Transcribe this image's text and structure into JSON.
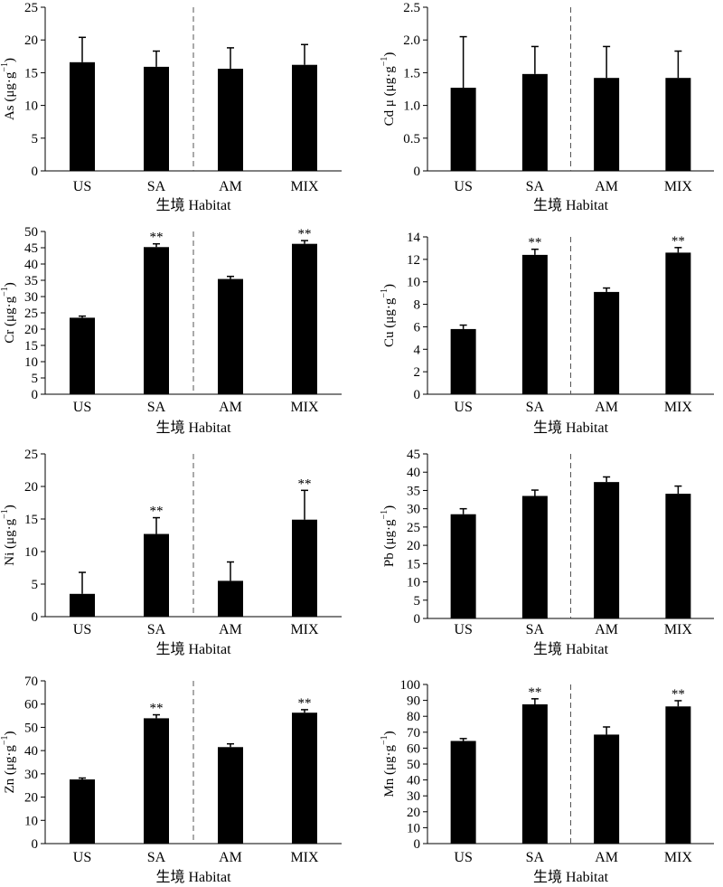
{
  "figure": {
    "xlabel": "生境 Habitat"
  },
  "chart_data": [
    {
      "type": "bar",
      "ylabel": "As (μg·g⁻¹)",
      "ylabel_parts": [
        "As",
        "(μg·g",
        "−1",
        ")"
      ],
      "categories": [
        "US",
        "SA",
        "AM",
        "MIX"
      ],
      "values": [
        16.6,
        15.9,
        15.6,
        16.2
      ],
      "errors": [
        3.8,
        2.4,
        3.2,
        3.1
      ],
      "sig": [
        "",
        "",
        "",
        ""
      ],
      "ylim": [
        0,
        25
      ],
      "yticks": [
        0,
        5,
        10,
        15,
        20,
        25
      ],
      "ytick_labels": [
        "0",
        "5",
        "10",
        "15",
        "20",
        "25"
      ],
      "xlabel": "生境 Habitat",
      "divider_between": [
        "SA",
        "AM"
      ]
    },
    {
      "type": "bar",
      "ylabel": "Cd μ(μg·g⁻¹)",
      "ylabel_parts": [
        "Cd μ",
        "(μg·g",
        "−1",
        ")"
      ],
      "categories": [
        "US",
        "SA",
        "AM",
        "MIX"
      ],
      "values": [
        1.27,
        1.48,
        1.42,
        1.42
      ],
      "errors": [
        0.78,
        0.42,
        0.48,
        0.41
      ],
      "sig": [
        "",
        "",
        "",
        ""
      ],
      "ylim": [
        0,
        2.5
      ],
      "yticks": [
        0,
        0.5,
        1,
        1.5,
        2,
        2.5
      ],
      "ytick_labels": [
        "0",
        "0.5",
        "1.0",
        "1.5",
        "2.0",
        "2.5"
      ],
      "xlabel": "生境 Habitat",
      "divider_between": [
        "SA",
        "AM"
      ]
    },
    {
      "type": "bar",
      "ylabel": "Cr (μg·g⁻¹)",
      "ylabel_parts": [
        "Cr",
        "(μg·g",
        "−1",
        ")"
      ],
      "categories": [
        "US",
        "SA",
        "AM",
        "MIX"
      ],
      "values": [
        23.5,
        45.2,
        35.4,
        46.2
      ],
      "errors": [
        0.5,
        1.0,
        0.8,
        1.0
      ],
      "sig": [
        "",
        "**",
        "",
        "**"
      ],
      "ylim": [
        0,
        50
      ],
      "yticks": [
        0,
        5,
        10,
        15,
        20,
        25,
        30,
        35,
        40,
        45,
        50
      ],
      "ytick_labels": [
        "0",
        "5",
        "10",
        "15",
        "20",
        "25",
        "30",
        "35",
        "40",
        "45",
        "50"
      ],
      "xlabel": "生境 Habitat",
      "divider_between": [
        "SA",
        "AM"
      ]
    },
    {
      "type": "bar",
      "ylabel": "Cu (μg·g⁻¹)",
      "ylabel_parts": [
        "Cu",
        "(μg·g",
        "−1",
        ")"
      ],
      "categories": [
        "US",
        "SA",
        "AM",
        "MIX"
      ],
      "values": [
        5.8,
        12.4,
        9.1,
        12.6
      ],
      "errors": [
        0.35,
        0.5,
        0.35,
        0.45
      ],
      "sig": [
        "",
        "**",
        "",
        "**"
      ],
      "ylim": [
        0,
        14
      ],
      "yticks": [
        0,
        2,
        4,
        6,
        8,
        10,
        12,
        14
      ],
      "ytick_labels": [
        "0",
        "2",
        "4",
        "6",
        "8",
        "10",
        "12",
        "14"
      ],
      "xlabel": "生境 Habitat",
      "divider_between": [
        "SA",
        "AM"
      ]
    },
    {
      "type": "bar",
      "ylabel": "Ni (μg·g⁻¹)",
      "ylabel_parts": [
        "Ni",
        "(μg·g",
        "−1",
        ")"
      ],
      "categories": [
        "US",
        "SA",
        "AM",
        "MIX"
      ],
      "values": [
        3.5,
        12.7,
        5.5,
        14.9
      ],
      "errors": [
        3.3,
        2.5,
        2.9,
        4.5
      ],
      "sig": [
        "",
        "**",
        "",
        "**"
      ],
      "ylim": [
        0,
        25
      ],
      "yticks": [
        0,
        5,
        10,
        15,
        20,
        25
      ],
      "ytick_labels": [
        "0",
        "5",
        "10",
        "15",
        "20",
        "25"
      ],
      "xlabel": "生境 Habitat",
      "divider_between": [
        "SA",
        "AM"
      ]
    },
    {
      "type": "bar",
      "ylabel": "Pb (μg·g⁻¹)",
      "ylabel_parts": [
        "Pb",
        "(μg·g",
        "−1",
        ")"
      ],
      "categories": [
        "US",
        "SA",
        "AM",
        "MIX"
      ],
      "values": [
        28.5,
        33.5,
        37.3,
        34.1
      ],
      "errors": [
        1.5,
        1.6,
        1.4,
        2.1
      ],
      "sig": [
        "",
        "",
        "",
        ""
      ],
      "ylim": [
        0,
        45
      ],
      "yticks": [
        0,
        5,
        10,
        15,
        20,
        25,
        30,
        35,
        40,
        45
      ],
      "ytick_labels": [
        "0",
        "5",
        "10",
        "15",
        "20",
        "25",
        "30",
        "35",
        "40",
        "45"
      ],
      "xlabel": "生境 Habitat",
      "divider_between": [
        "SA",
        "AM"
      ]
    },
    {
      "type": "bar",
      "ylabel": "Zn (μg·g⁻¹)",
      "ylabel_parts": [
        "Zn",
        "(μg·g",
        "−1",
        ")"
      ],
      "categories": [
        "US",
        "SA",
        "AM",
        "MIX"
      ],
      "values": [
        27.6,
        53.9,
        41.5,
        56.3
      ],
      "errors": [
        0.6,
        1.5,
        1.4,
        1.3
      ],
      "sig": [
        "",
        "**",
        "",
        "**"
      ],
      "ylim": [
        0,
        70
      ],
      "yticks": [
        0,
        10,
        20,
        30,
        40,
        50,
        60,
        70
      ],
      "ytick_labels": [
        "0",
        "10",
        "20",
        "30",
        "40",
        "50",
        "60",
        "70"
      ],
      "xlabel": "生境 Habitat",
      "divider_between": [
        "SA",
        "AM"
      ]
    },
    {
      "type": "bar",
      "ylabel": "Mn (μg·g⁻¹)",
      "ylabel_parts": [
        "Mn",
        "(μg·g",
        "−1",
        ")"
      ],
      "categories": [
        "US",
        "SA",
        "AM",
        "MIX"
      ],
      "values": [
        64.5,
        87.5,
        68.5,
        86.2
      ],
      "errors": [
        1.5,
        3.5,
        4.8,
        3.6
      ],
      "sig": [
        "",
        "**",
        "",
        "**"
      ],
      "ylim": [
        0,
        100
      ],
      "yticks": [
        0,
        10,
        20,
        30,
        40,
        50,
        60,
        70,
        80,
        90,
        100
      ],
      "ytick_labels": [
        "0",
        "10",
        "20",
        "30",
        "40",
        "50",
        "60",
        "70",
        "80",
        "90",
        "100"
      ],
      "xlabel": "生境 Habitat",
      "divider_between": [
        "SA",
        "AM"
      ]
    }
  ],
  "style": {
    "bar_color": "#000000",
    "axis_color": "#000000",
    "divider_color": "#555555"
  }
}
